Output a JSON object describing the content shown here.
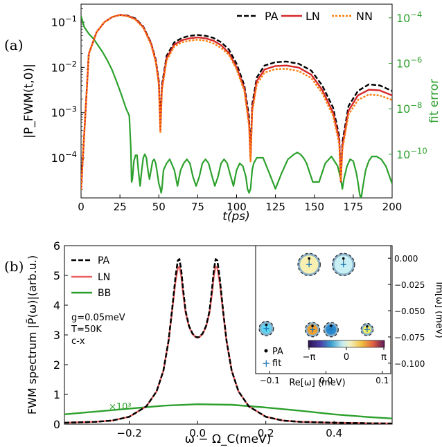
{
  "chart_data": [
    {
      "panel_label": "(a)",
      "type": "line",
      "xlabel": "t(ps)",
      "ylabel": "|P_FWM(t,0)|",
      "y2label": "fit error",
      "xlim": [
        0,
        200
      ],
      "ylim": [
        1.3e-05,
        0.25
      ],
      "y2lim": [
        1.2e-12,
        0.0004
      ],
      "yscale": "log",
      "y2scale": "log",
      "xticks": [
        0,
        25,
        50,
        75,
        100,
        125,
        150,
        175,
        200
      ],
      "yticks": [
        0.0001,
        0.001,
        0.01,
        0.1
      ],
      "ytick_labels": [
        "10^-4",
        "10^-3",
        "10^-2",
        "10^-1"
      ],
      "y2ticks": [
        1e-10,
        1e-08,
        1e-06,
        0.0001
      ],
      "y2tick_labels": [
        "10^-10",
        "10^-8",
        "10^-6",
        "10^-4"
      ],
      "legend_position": "top-right",
      "grid": false,
      "series": [
        {
          "name": "PA",
          "style": "dashed",
          "color": "#000000",
          "axis": "left",
          "x": [
            0,
            5,
            10,
            15,
            20,
            25,
            30,
            35,
            40,
            45,
            48,
            50,
            51,
            52,
            55,
            60,
            65,
            70,
            75,
            80,
            85,
            90,
            95,
            100,
            105,
            108,
            109,
            110,
            113,
            118,
            125,
            132,
            140,
            148,
            155,
            162,
            166,
            167,
            168,
            172,
            178,
            185,
            192,
            200
          ],
          "y": [
            2e-05,
            0.02,
            0.06,
            0.1,
            0.13,
            0.145,
            0.14,
            0.12,
            0.08,
            0.035,
            0.015,
            0.005,
            0.0005,
            0.004,
            0.018,
            0.036,
            0.045,
            0.05,
            0.052,
            0.05,
            0.045,
            0.036,
            0.025,
            0.012,
            0.004,
            0.0008,
            0.0001,
            0.0015,
            0.006,
            0.011,
            0.013,
            0.0135,
            0.012,
            0.0085,
            0.004,
            0.0013,
            0.0003,
            3e-05,
            0.00022,
            0.0014,
            0.003,
            0.0042,
            0.004,
            0.003
          ]
        },
        {
          "name": "LN",
          "style": "solid",
          "color": "#d62728",
          "axis": "left",
          "x": [
            0,
            5,
            10,
            15,
            20,
            25,
            30,
            35,
            40,
            45,
            48,
            50,
            51,
            52,
            55,
            60,
            65,
            70,
            75,
            80,
            85,
            90,
            95,
            100,
            105,
            108,
            109,
            110,
            113,
            118,
            125,
            132,
            140,
            148,
            155,
            162,
            166,
            167,
            168,
            172,
            178,
            185,
            192,
            200
          ],
          "y": [
            2e-05,
            0.02,
            0.06,
            0.1,
            0.13,
            0.145,
            0.138,
            0.117,
            0.078,
            0.034,
            0.014,
            0.0045,
            0.0004,
            0.0035,
            0.016,
            0.032,
            0.04,
            0.044,
            0.046,
            0.044,
            0.039,
            0.031,
            0.021,
            0.01,
            0.0034,
            0.0006,
            9e-05,
            0.0012,
            0.005,
            0.009,
            0.0107,
            0.011,
            0.0099,
            0.0069,
            0.0032,
            0.001,
            0.00025,
            3e-05,
            0.00018,
            0.0011,
            0.0024,
            0.0032,
            0.0031,
            0.0024
          ]
        },
        {
          "name": "NN",
          "style": "dotted",
          "color": "#ff7f0e",
          "axis": "left",
          "x": [
            0,
            5,
            10,
            15,
            20,
            25,
            30,
            35,
            40,
            45,
            48,
            50,
            51,
            52,
            55,
            60,
            65,
            70,
            75,
            80,
            85,
            90,
            95,
            100,
            105,
            108,
            109,
            110,
            113,
            118,
            125,
            132,
            140,
            148,
            155,
            162,
            166,
            167,
            168,
            172,
            178,
            185,
            192,
            200
          ],
          "y": [
            2e-05,
            0.02,
            0.06,
            0.1,
            0.13,
            0.143,
            0.135,
            0.113,
            0.075,
            0.032,
            0.013,
            0.004,
            0.00035,
            0.003,
            0.014,
            0.029,
            0.036,
            0.039,
            0.041,
            0.039,
            0.034,
            0.027,
            0.019,
            0.009,
            0.003,
            0.0005,
            8e-05,
            0.001,
            0.0042,
            0.0077,
            0.0091,
            0.0093,
            0.0083,
            0.0058,
            0.0027,
            0.00085,
            0.0002,
            3e-05,
            0.00015,
            0.0009,
            0.0019,
            0.0025,
            0.0024,
            0.0019
          ]
        },
        {
          "name": "fit error",
          "style": "solid",
          "color": "#2ca02c",
          "axis": "right",
          "x": [
            0,
            2,
            5,
            8,
            11,
            14,
            17,
            20,
            23,
            26,
            29,
            31,
            32,
            32.5,
            33,
            34,
            35,
            36,
            37,
            38,
            39,
            40,
            41,
            42,
            43,
            44,
            45,
            46,
            47,
            48,
            49,
            50,
            51,
            51.5,
            52,
            53,
            55,
            57,
            60,
            62,
            64,
            66,
            68,
            70,
            72,
            74,
            76,
            78,
            80,
            82,
            84,
            86,
            88,
            90,
            92,
            94,
            96,
            98,
            100,
            102,
            104,
            106,
            107,
            108,
            109,
            110,
            111,
            113,
            117,
            121,
            125,
            129,
            133,
            137,
            139,
            141,
            143,
            145,
            149,
            153,
            157,
            161,
            165,
            167,
            168,
            169,
            171,
            173,
            175,
            177,
            178,
            179,
            180,
            181,
            182,
            183,
            185,
            187,
            190,
            193,
            196,
            200
          ],
          "y": [
            0.00012,
            4e-05,
            2e-05,
            1.2e-05,
            6e-06,
            3e-06,
            1.3e-06,
            5e-07,
            1.5e-07,
            4e-08,
            1e-08,
            5e-09,
            2e-10,
            6e-12,
            8e-12,
            5e-11,
            9e-11,
            9e-11,
            1.5e-11,
            4e-12,
            2e-11,
            7e-11,
            1e-10,
            7e-11,
            2e-11,
            8e-12,
            2e-11,
            5e-11,
            6e-11,
            4e-11,
            1.5e-11,
            5e-12,
            3e-12,
            2e-12,
            3e-12,
            2e-11,
            4e-11,
            6e-11,
            2e-11,
            4e-12,
            2e-11,
            4e-11,
            6e-11,
            4e-11,
            1e-11,
            4e-12,
            1e-11,
            4e-11,
            6e-11,
            4e-11,
            1.2e-11,
            4e-12,
            1e-11,
            4e-11,
            6e-11,
            4e-11,
            1.2e-11,
            4e-12,
            2e-11,
            4e-11,
            3e-11,
            1e-11,
            3e-12,
            2e-12,
            3e-12,
            2e-11,
            4e-11,
            7e-11,
            7e-11,
            1.5e-11,
            3e-12,
            1.5e-11,
            6e-11,
            1e-10,
            1.2e-10,
            1e-10,
            7e-11,
            4e-11,
            6e-12,
            6e-12,
            4e-11,
            8e-11,
            3e-11,
            8e-12,
            3e-12,
            8e-12,
            3e-11,
            6e-11,
            5e-11,
            1.5e-11,
            6e-12,
            2e-12,
            1e-12,
            3e-12,
            8e-12,
            2e-11,
            5e-11,
            8e-11,
            8e-11,
            6e-11,
            3e-11,
            5e-12
          ]
        }
      ]
    },
    {
      "panel_label": "(b)",
      "type": "line",
      "xlabel": "ω − Ω_C(meV)",
      "ylabel": "FWM spectrum |P̃(ω)|(arb.u.)",
      "xlim": [
        -0.39,
        0.57
      ],
      "ylim": [
        0,
        6
      ],
      "xticks": [
        -0.2,
        0.0,
        0.2,
        0.4
      ],
      "xtick_labels": [
        "−0.2",
        "0.0",
        "0.2",
        "0.4"
      ],
      "yticks": [
        0,
        1,
        2,
        3,
        4,
        5,
        6
      ],
      "legend_position": "top-left",
      "grid": false,
      "annotations": [
        "g=0.05meV",
        "T=50K",
        "c-x"
      ],
      "bb_scale_label": "×10³",
      "series": [
        {
          "name": "PA",
          "style": "dashed",
          "color": "#000000",
          "x": [
            -0.39,
            -0.3,
            -0.25,
            -0.2,
            -0.15,
            -0.12,
            -0.1,
            -0.085,
            -0.075,
            -0.065,
            -0.058,
            -0.053,
            -0.048,
            -0.043,
            -0.035,
            -0.025,
            -0.015,
            -0.005,
            0.0,
            0.005,
            0.015,
            0.025,
            0.035,
            0.043,
            0.048,
            0.053,
            0.058,
            0.065,
            0.075,
            0.085,
            0.1,
            0.12,
            0.15,
            0.2,
            0.25,
            0.3,
            0.4,
            0.5,
            0.57
          ],
          "y": [
            0.05,
            0.08,
            0.12,
            0.25,
            0.6,
            1.1,
            1.8,
            2.8,
            3.8,
            4.9,
            5.5,
            5.55,
            5.2,
            4.6,
            3.8,
            3.3,
            3.05,
            2.93,
            2.92,
            2.93,
            3.05,
            3.3,
            3.8,
            4.6,
            5.2,
            5.55,
            5.5,
            4.9,
            3.8,
            2.8,
            1.8,
            1.1,
            0.6,
            0.25,
            0.12,
            0.08,
            0.05,
            0.03,
            0.02
          ]
        },
        {
          "name": "LN",
          "style": "solid",
          "color": "#e86060",
          "x": [
            -0.39,
            -0.3,
            -0.25,
            -0.2,
            -0.15,
            -0.12,
            -0.1,
            -0.085,
            -0.075,
            -0.065,
            -0.058,
            -0.053,
            -0.048,
            -0.043,
            -0.035,
            -0.025,
            -0.015,
            -0.005,
            0.0,
            0.005,
            0.015,
            0.025,
            0.035,
            0.043,
            0.048,
            0.053,
            0.058,
            0.065,
            0.075,
            0.085,
            0.1,
            0.12,
            0.15,
            0.2,
            0.25,
            0.3,
            0.4,
            0.5,
            0.57
          ],
          "y": [
            0.05,
            0.08,
            0.12,
            0.25,
            0.6,
            1.1,
            1.8,
            2.8,
            3.75,
            4.75,
            5.25,
            5.3,
            5.0,
            4.45,
            3.75,
            3.28,
            3.03,
            2.92,
            2.9,
            2.92,
            3.03,
            3.28,
            3.75,
            4.45,
            5.0,
            5.3,
            5.25,
            4.75,
            3.75,
            2.8,
            1.8,
            1.1,
            0.6,
            0.25,
            0.12,
            0.08,
            0.05,
            0.03,
            0.02
          ]
        },
        {
          "name": "BB",
          "style": "solid",
          "color": "#2ca02c",
          "scale_note": "×10³",
          "x": [
            -0.39,
            -0.3,
            -0.2,
            -0.1,
            0.0,
            0.1,
            0.2,
            0.3,
            0.4,
            0.5,
            0.57
          ],
          "y": [
            0.33,
            0.42,
            0.52,
            0.62,
            0.67,
            0.65,
            0.56,
            0.45,
            0.33,
            0.24,
            0.19
          ]
        }
      ]
    },
    {
      "panel_label": "(b) inset",
      "type": "scatter",
      "xlabel": "Re[ω] (meV)",
      "ylabel": "Im[ω] (meV)",
      "xlim": [
        -0.125,
        0.115
      ],
      "ylim": [
        -0.11,
        0.012
      ],
      "xticks": [
        -0.1,
        0.0,
        0.1
      ],
      "xtick_labels": [
        "−0.1",
        "0.0",
        "0.1"
      ],
      "yticks": [
        0.0,
        -0.025,
        -0.05,
        -0.075,
        -0.1
      ],
      "ytick_labels": [
        "0.000",
        "−0.025",
        "−0.050",
        "−0.075",
        "−0.100"
      ],
      "yaxis_side": "right",
      "legend": [
        "PA",
        "fit"
      ],
      "colorbar": {
        "ticks": [
          "−π",
          "0",
          "π"
        ],
        "colormap": "twilight-like"
      },
      "poles": [
        {
          "re": -0.03,
          "im": -0.006,
          "radius": 0.018,
          "phase_color": "#f7f0b0"
        },
        {
          "re": 0.031,
          "im": -0.006,
          "radius": 0.018,
          "phase_color": "#c8f0f4"
        },
        {
          "re": -0.106,
          "im": -0.067,
          "radius": 0.011,
          "phase_color": "#5fd3f0"
        },
        {
          "re": -0.024,
          "im": -0.068,
          "radius": 0.011,
          "phase_color": "#f0a030"
        },
        {
          "re": 0.009,
          "im": -0.068,
          "radius": 0.011,
          "phase_color": "#2a8ad0"
        },
        {
          "re": 0.073,
          "im": -0.068,
          "radius": 0.009,
          "phase_color": "#f6f060"
        }
      ]
    }
  ]
}
